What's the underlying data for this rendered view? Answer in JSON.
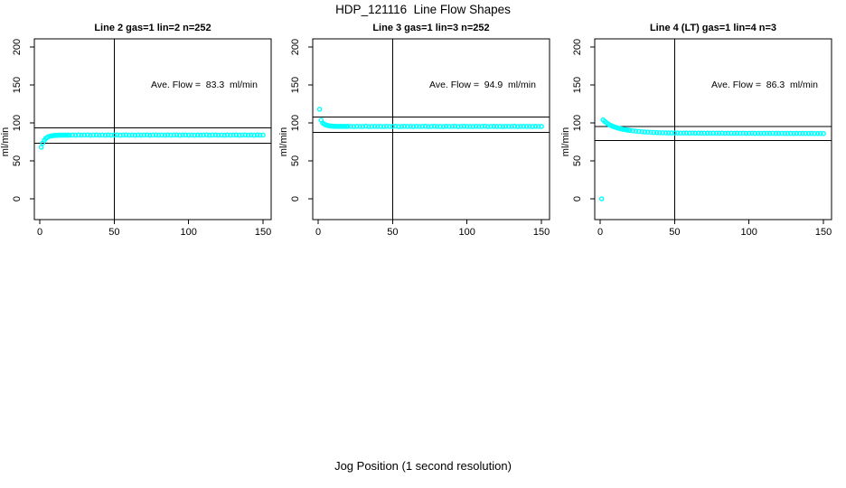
{
  "figure": {
    "title": "HDP_121116  Line Flow Shapes",
    "outer_xlabel": "Jog Position (1 second resolution)",
    "background": "#FFFFFF",
    "axis_color": "#000000",
    "point_color": "#00FFFF"
  },
  "chart_data": [
    {
      "type": "scatter",
      "title": "Line 2 gas=1 lin=2 n=252",
      "annotation": "Ave. Flow =  83.3  ml/min",
      "ave_flow_ml_min": 83.3,
      "n": 252,
      "ylabel": "ml/min",
      "xlim": [
        0,
        150
      ],
      "ylim": [
        0,
        200
      ],
      "xticks": [
        0,
        50,
        100,
        150
      ],
      "yticks": [
        0,
        50,
        100,
        150,
        200
      ],
      "vline_x": 50,
      "hlines": [
        93.5,
        73
      ],
      "marker": "open-circle",
      "points": [
        [
          1,
          68
        ],
        [
          2,
          73.5
        ],
        [
          3,
          77
        ],
        [
          4,
          79.5
        ],
        [
          5,
          81
        ],
        [
          6,
          82
        ],
        [
          7,
          82.6
        ],
        [
          8,
          83
        ],
        [
          9,
          83.3
        ],
        [
          10,
          83.5
        ],
        [
          11,
          83.6
        ],
        [
          12,
          83.7
        ],
        [
          13,
          83.8
        ],
        [
          14,
          83.8
        ],
        [
          15,
          83.9
        ],
        [
          16,
          83.9
        ],
        [
          17,
          84
        ],
        [
          18,
          83.8
        ],
        [
          19,
          84
        ],
        [
          20,
          83.9
        ],
        [
          22,
          84
        ],
        [
          24,
          83.8
        ],
        [
          26,
          84.1
        ],
        [
          28,
          83.9
        ],
        [
          30,
          84
        ],
        [
          32,
          84.2
        ],
        [
          34,
          83.8
        ],
        [
          36,
          84
        ],
        [
          38,
          84.1
        ],
        [
          40,
          83.9
        ],
        [
          42,
          84
        ],
        [
          44,
          83.8
        ],
        [
          46,
          84.1
        ],
        [
          48,
          83.9
        ],
        [
          50,
          84
        ],
        [
          52,
          84.2
        ],
        [
          54,
          83.8
        ],
        [
          56,
          84
        ],
        [
          58,
          84.1
        ],
        [
          60,
          83.9
        ],
        [
          62,
          84
        ],
        [
          64,
          83.8
        ],
        [
          66,
          84.1
        ],
        [
          68,
          83.9
        ],
        [
          70,
          84
        ],
        [
          72,
          84.2
        ],
        [
          74,
          83.8
        ],
        [
          76,
          84
        ],
        [
          78,
          84.1
        ],
        [
          80,
          83.9
        ],
        [
          82,
          84
        ],
        [
          84,
          83.8
        ],
        [
          86,
          84.1
        ],
        [
          88,
          83.9
        ],
        [
          90,
          84
        ],
        [
          92,
          84.2
        ],
        [
          94,
          83.8
        ],
        [
          96,
          84
        ],
        [
          98,
          84.1
        ],
        [
          100,
          83.9
        ],
        [
          102,
          84
        ],
        [
          104,
          83.8
        ],
        [
          106,
          84.1
        ],
        [
          108,
          83.9
        ],
        [
          110,
          84
        ],
        [
          112,
          84.2
        ],
        [
          114,
          83.8
        ],
        [
          116,
          84
        ],
        [
          118,
          84.1
        ],
        [
          120,
          83.9
        ],
        [
          122,
          84
        ],
        [
          124,
          83.8
        ],
        [
          126,
          84.1
        ],
        [
          128,
          83.9
        ],
        [
          130,
          84
        ],
        [
          132,
          84.2
        ],
        [
          134,
          83.8
        ],
        [
          136,
          84
        ],
        [
          138,
          84.1
        ],
        [
          140,
          83.9
        ],
        [
          142,
          84
        ],
        [
          144,
          83.8
        ],
        [
          146,
          84.1
        ],
        [
          148,
          83.9
        ],
        [
          150,
          84
        ]
      ]
    },
    {
      "type": "scatter",
      "title": "Line 3 gas=1 lin=3 n=252",
      "annotation": "Ave. Flow =  94.9  ml/min",
      "ave_flow_ml_min": 94.9,
      "n": 252,
      "ylabel": "ml/min",
      "xlim": [
        0,
        150
      ],
      "ylim": [
        0,
        200
      ],
      "xticks": [
        0,
        50,
        100,
        150
      ],
      "yticks": [
        0,
        50,
        100,
        150,
        200
      ],
      "vline_x": 50,
      "hlines": [
        108,
        87.5
      ],
      "marker": "open-circle",
      "points": [
        [
          1,
          118
        ],
        [
          2,
          103.5
        ],
        [
          3,
          100
        ],
        [
          4,
          98.5
        ],
        [
          5,
          97.5
        ],
        [
          6,
          96.8
        ],
        [
          7,
          96.3
        ],
        [
          8,
          96
        ],
        [
          9,
          95.8
        ],
        [
          10,
          95.6
        ],
        [
          11,
          95.5
        ],
        [
          12,
          95.5
        ],
        [
          13,
          95.4
        ],
        [
          14,
          95.4
        ],
        [
          15,
          95.5
        ],
        [
          16,
          95.3
        ],
        [
          17,
          95.5
        ],
        [
          18,
          95.4
        ],
        [
          19,
          95.3
        ],
        [
          20,
          95.5
        ],
        [
          22,
          95.4
        ],
        [
          24,
          95.2
        ],
        [
          26,
          95.5
        ],
        [
          28,
          95.3
        ],
        [
          30,
          95.4
        ],
        [
          32,
          95.6
        ],
        [
          34,
          95.2
        ],
        [
          36,
          95.4
        ],
        [
          38,
          95.5
        ],
        [
          40,
          95.3
        ],
        [
          42,
          95.4
        ],
        [
          44,
          95.2
        ],
        [
          46,
          95.5
        ],
        [
          48,
          95.3
        ],
        [
          50,
          95.4
        ],
        [
          52,
          95.6
        ],
        [
          54,
          95.2
        ],
        [
          56,
          95.4
        ],
        [
          58,
          95.5
        ],
        [
          60,
          95.3
        ],
        [
          62,
          95.4
        ],
        [
          64,
          95.2
        ],
        [
          66,
          95.5
        ],
        [
          68,
          95.3
        ],
        [
          70,
          95.4
        ],
        [
          72,
          95.6
        ],
        [
          74,
          95.2
        ],
        [
          76,
          95.4
        ],
        [
          78,
          95.5
        ],
        [
          80,
          95.3
        ],
        [
          82,
          95.4
        ],
        [
          84,
          95.2
        ],
        [
          86,
          95.5
        ],
        [
          88,
          95.3
        ],
        [
          90,
          95.4
        ],
        [
          92,
          95.6
        ],
        [
          94,
          95.2
        ],
        [
          96,
          95.4
        ],
        [
          98,
          95.5
        ],
        [
          100,
          95.3
        ],
        [
          102,
          95.4
        ],
        [
          104,
          95.2
        ],
        [
          106,
          95.5
        ],
        [
          108,
          95.3
        ],
        [
          110,
          95.4
        ],
        [
          112,
          95.6
        ],
        [
          114,
          95.2
        ],
        [
          116,
          95.4
        ],
        [
          118,
          95.5
        ],
        [
          120,
          95.3
        ],
        [
          122,
          95.4
        ],
        [
          124,
          95.2
        ],
        [
          126,
          95.5
        ],
        [
          128,
          95.3
        ],
        [
          130,
          95.4
        ],
        [
          132,
          95.6
        ],
        [
          134,
          95.2
        ],
        [
          136,
          95.4
        ],
        [
          138,
          95.5
        ],
        [
          140,
          95.3
        ],
        [
          142,
          95.4
        ],
        [
          144,
          95.2
        ],
        [
          146,
          95.5
        ],
        [
          148,
          95.3
        ],
        [
          150,
          95.4
        ]
      ]
    },
    {
      "type": "scatter",
      "title": "Line 4 (LT) gas=1 lin=4 n=3",
      "annotation": "Ave. Flow =  86.3  ml/min",
      "ave_flow_ml_min": 86.3,
      "n": 3,
      "ylabel": "ml/min",
      "xlim": [
        0,
        150
      ],
      "ylim": [
        0,
        200
      ],
      "xticks": [
        0,
        50,
        100,
        150
      ],
      "yticks": [
        0,
        50,
        100,
        150,
        200
      ],
      "vline_x": 50,
      "hlines": [
        95,
        77
      ],
      "marker": "open-circle",
      "points": [
        [
          1,
          0
        ],
        [
          2,
          104
        ],
        [
          3,
          102
        ],
        [
          4,
          100.5
        ],
        [
          5,
          99
        ],
        [
          6,
          97.8
        ],
        [
          7,
          96.8
        ],
        [
          8,
          95.9
        ],
        [
          9,
          95.1
        ],
        [
          10,
          94.4
        ],
        [
          11,
          93.8
        ],
        [
          12,
          93.2
        ],
        [
          13,
          92.7
        ],
        [
          14,
          92.2
        ],
        [
          15,
          91.8
        ],
        [
          16,
          91.4
        ],
        [
          17,
          91
        ],
        [
          18,
          90.7
        ],
        [
          19,
          90.4
        ],
        [
          20,
          90.1
        ],
        [
          22,
          89.6
        ],
        [
          24,
          89.2
        ],
        [
          26,
          88.8
        ],
        [
          28,
          88.4
        ],
        [
          30,
          88.1
        ],
        [
          32,
          87.9
        ],
        [
          34,
          87.6
        ],
        [
          36,
          87.4
        ],
        [
          38,
          87.3
        ],
        [
          40,
          87.1
        ],
        [
          42,
          87
        ],
        [
          44,
          86.9
        ],
        [
          46,
          86.8
        ],
        [
          48,
          86.8
        ],
        [
          50,
          86.7
        ],
        [
          52,
          86.7
        ],
        [
          54,
          86.6
        ],
        [
          56,
          86.6
        ],
        [
          58,
          86.7
        ],
        [
          60,
          86.5
        ],
        [
          62,
          86.6
        ],
        [
          64,
          86.5
        ],
        [
          66,
          86.6
        ],
        [
          68,
          86.5
        ],
        [
          70,
          86.4
        ],
        [
          72,
          86.5
        ],
        [
          74,
          86.4
        ],
        [
          76,
          86.5
        ],
        [
          78,
          86.4
        ],
        [
          80,
          86.4
        ],
        [
          82,
          86.5
        ],
        [
          84,
          86.3
        ],
        [
          86,
          86.4
        ],
        [
          88,
          86.4
        ],
        [
          90,
          86.3
        ],
        [
          92,
          86.4
        ],
        [
          94,
          86.3
        ],
        [
          96,
          86.4
        ],
        [
          98,
          86.3
        ],
        [
          100,
          86.3
        ],
        [
          102,
          86.4
        ],
        [
          104,
          86.2
        ],
        [
          106,
          86.3
        ],
        [
          108,
          86.3
        ],
        [
          110,
          86.2
        ],
        [
          112,
          86.3
        ],
        [
          114,
          86.2
        ],
        [
          116,
          86.3
        ],
        [
          118,
          86.2
        ],
        [
          120,
          86.2
        ],
        [
          122,
          86.3
        ],
        [
          124,
          86.1
        ],
        [
          126,
          86.2
        ],
        [
          128,
          86.2
        ],
        [
          130,
          86.1
        ],
        [
          132,
          86.2
        ],
        [
          134,
          86.1
        ],
        [
          136,
          86.2
        ],
        [
          138,
          86.1
        ],
        [
          140,
          86.1
        ],
        [
          142,
          86.2
        ],
        [
          144,
          86
        ],
        [
          146,
          86.1
        ],
        [
          148,
          86.1
        ],
        [
          150,
          86
        ]
      ]
    }
  ]
}
